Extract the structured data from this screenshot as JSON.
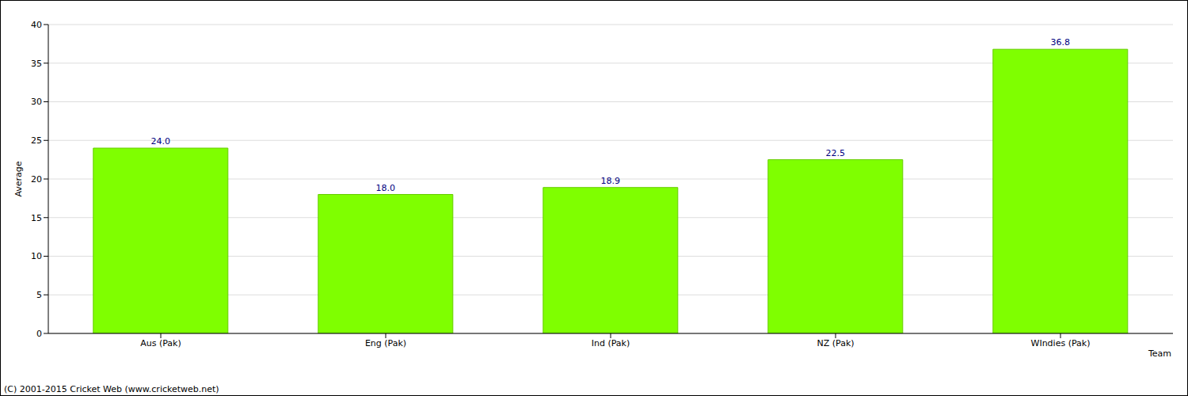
{
  "chart_data": {
    "type": "bar",
    "categories": [
      "Aus (Pak)",
      "Eng (Pak)",
      "Ind (Pak)",
      "NZ (Pak)",
      "WIndies (Pak)"
    ],
    "values": [
      24,
      18,
      18.9,
      22.5,
      36.8
    ],
    "value_labels": [
      "24.0",
      "18.0",
      "18.9",
      "22.5",
      "36.8"
    ],
    "color": "#7fff00",
    "ylim": [
      0,
      40
    ],
    "yticks": [
      0,
      5,
      10,
      15,
      20,
      25,
      30,
      35,
      40
    ],
    "grid": true,
    "data_labels": true,
    "x_label": "Team",
    "y_label": "Average",
    "annotations": [
      "(C) 2001-2015 Cricket Web (www.cricketweb.net)"
    ]
  }
}
